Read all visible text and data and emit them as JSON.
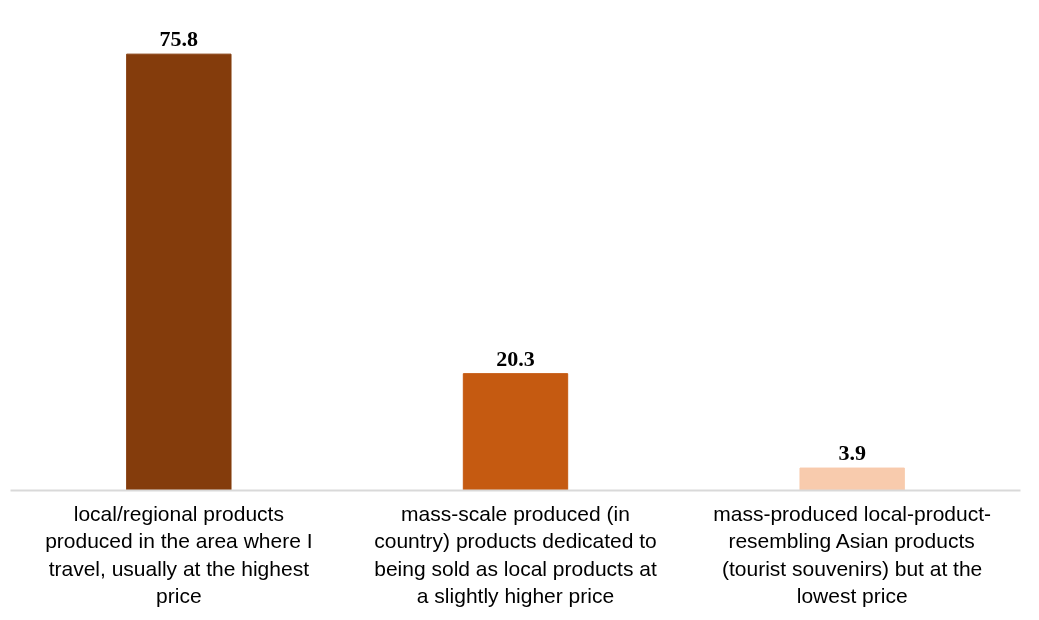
{
  "chart_data": {
    "type": "bar",
    "categories": [
      "local/regional products produced in the area where I travel, usually at the highest price",
      "mass-scale produced (in country) products dedicated to being sold as local products at a slightly higher price",
      "mass-produced local-product-resembling Asian products (tourist souvenirs) but at the lowest price"
    ],
    "values": [
      75.8,
      20.3,
      3.9
    ],
    "colors": [
      "#843c0c",
      "#c55a11",
      "#f8cbad"
    ],
    "data_labels": true
  }
}
